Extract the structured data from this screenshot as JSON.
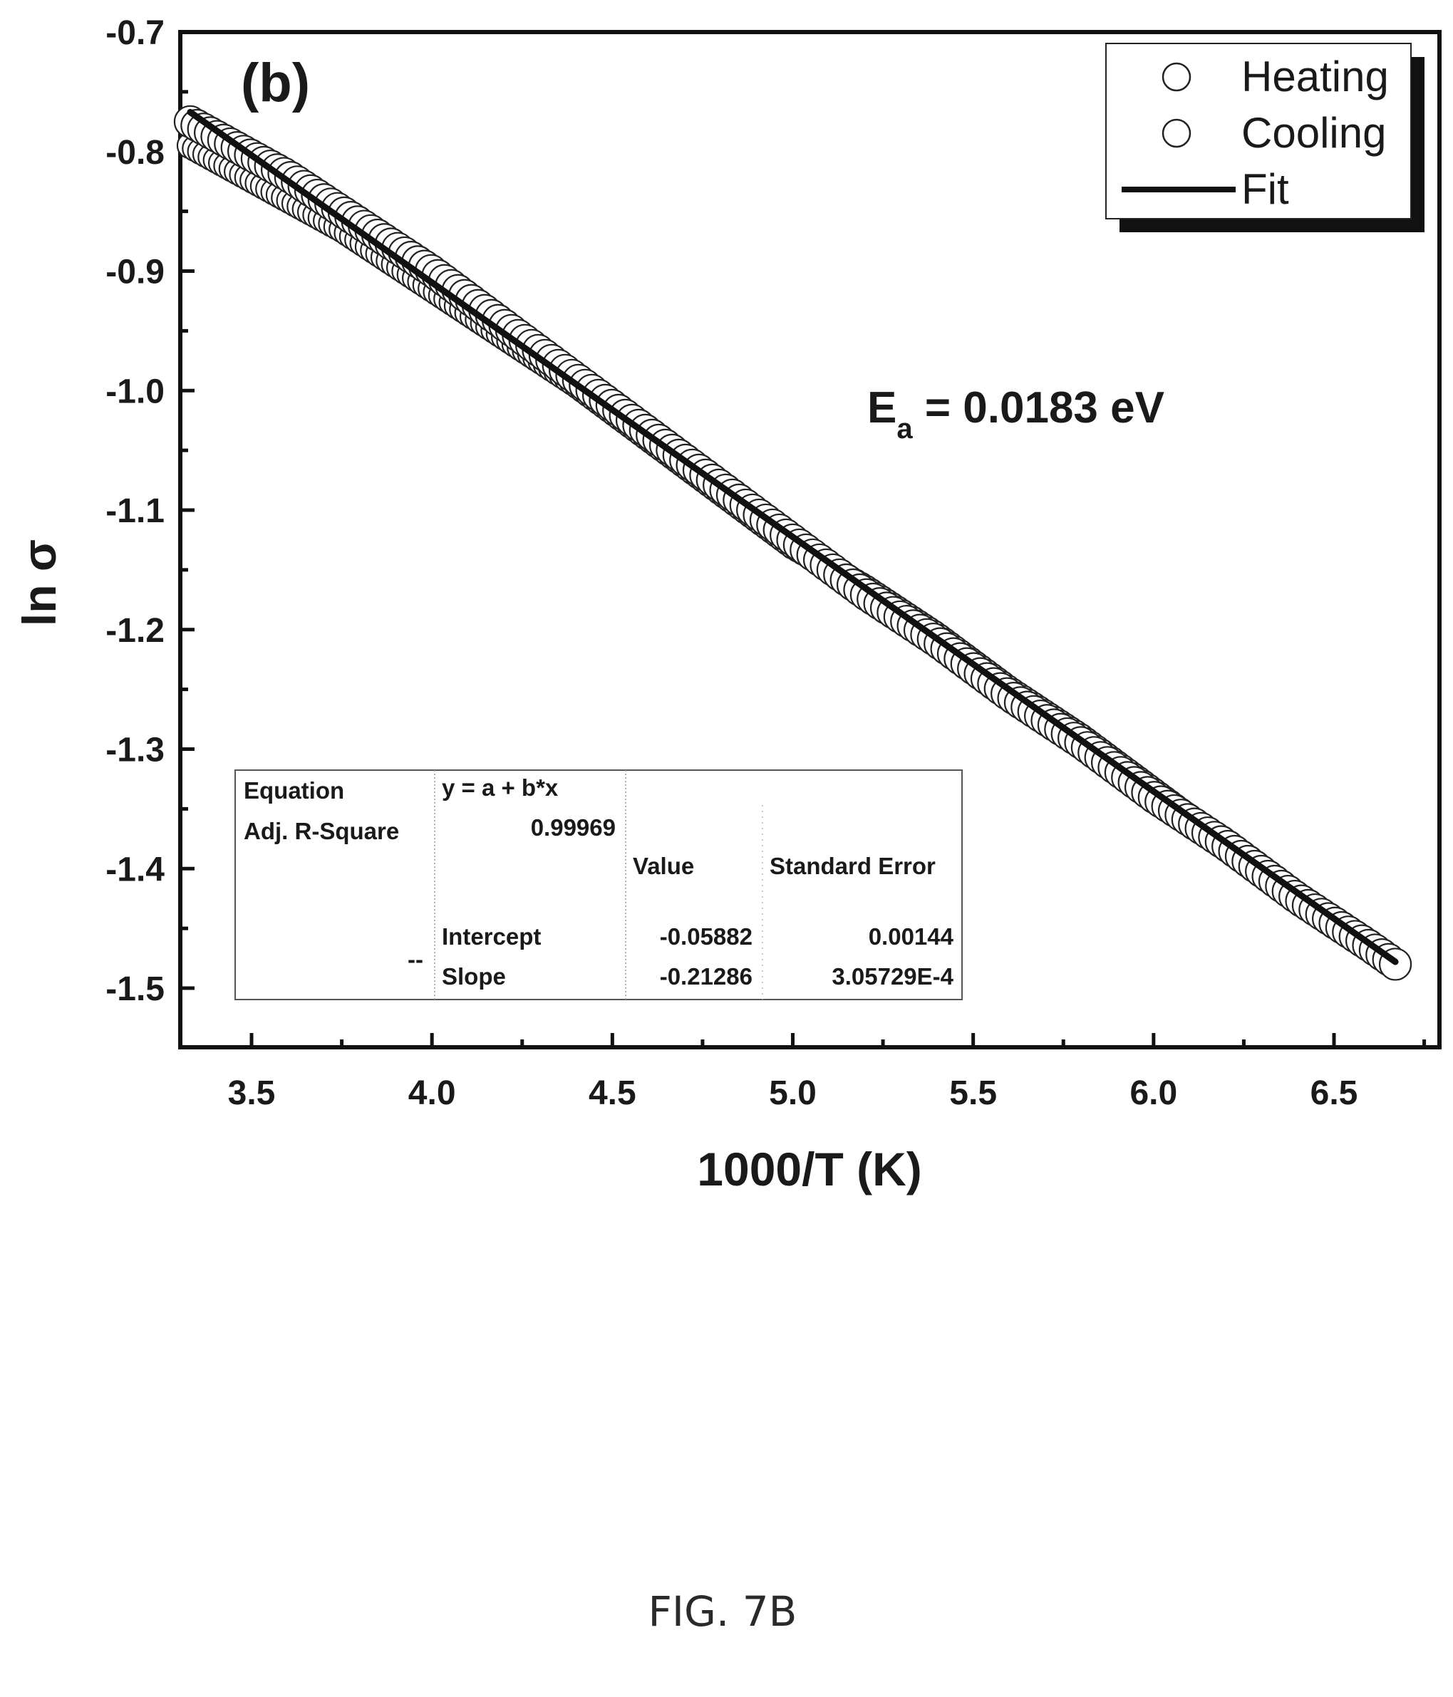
{
  "chart_data": {
    "type": "scatter",
    "panel_label": "(b)",
    "xlabel": "1000/T (K)",
    "ylabel": "ln σ",
    "xlim": [
      3.3,
      6.8
    ],
    "ylim": [
      -1.55,
      -0.7
    ],
    "x_ticks": [
      "3.5",
      "4.0",
      "4.5",
      "5.0",
      "5.5",
      "6.0",
      "6.5"
    ],
    "x_tick_values": [
      3.5,
      4.0,
      4.5,
      5.0,
      5.5,
      6.0,
      6.5
    ],
    "y_ticks": [
      "-0.7",
      "-0.8",
      "-0.9",
      "-1.0",
      "-1.1",
      "-1.2",
      "-1.3",
      "-1.4",
      "-1.5"
    ],
    "y_tick_values": [
      -0.7,
      -0.8,
      -0.9,
      -1.0,
      -1.1,
      -1.2,
      -1.3,
      -1.4,
      -1.5
    ],
    "series": [
      {
        "name": "Heating",
        "marker": "open-circle",
        "x": [
          3.33,
          3.45,
          3.6,
          3.75,
          3.9,
          4.0,
          4.2,
          4.4,
          4.6,
          4.8,
          5.0,
          5.2,
          5.4,
          5.6,
          5.8,
          6.0,
          6.2,
          6.4,
          6.6,
          6.67
        ],
        "y": [
          -0.795,
          -0.815,
          -0.84,
          -0.865,
          -0.895,
          -0.915,
          -0.955,
          -0.995,
          -1.04,
          -1.085,
          -1.13,
          -1.165,
          -1.205,
          -1.25,
          -1.29,
          -1.335,
          -1.38,
          -1.425,
          -1.465,
          -1.48
        ]
      },
      {
        "name": "Cooling",
        "marker": "open-circle",
        "x": [
          3.33,
          3.45,
          3.6,
          3.75,
          3.9,
          4.0,
          4.2,
          4.4,
          4.6,
          4.8,
          5.0,
          5.2,
          5.4,
          5.6,
          5.8,
          6.0,
          6.2,
          6.4,
          6.6,
          6.67
        ],
        "y": [
          -0.775,
          -0.795,
          -0.82,
          -0.85,
          -0.88,
          -0.9,
          -0.945,
          -0.99,
          -1.035,
          -1.08,
          -1.125,
          -1.17,
          -1.21,
          -1.255,
          -1.295,
          -1.34,
          -1.38,
          -1.425,
          -1.465,
          -1.48
        ]
      },
      {
        "name": "Fit",
        "type": "line",
        "x": [
          3.33,
          6.67
        ],
        "y": [
          -0.767,
          -1.478
        ]
      }
    ],
    "legend": {
      "position": "top-right",
      "entries": [
        "Heating",
        "Cooling",
        "Fit"
      ]
    },
    "annotation": {
      "main": "E",
      "sub": "a",
      "rest": " = 0.0183 eV"
    },
    "fit_table": {
      "equation_label": "Equation",
      "equation": "y = a + b*x",
      "adj_r_square_label": "Adj. R-Square",
      "adj_r_square": "0.99969",
      "value_header": "Value",
      "std_error_header": "Standard Error",
      "row_prefix": "--",
      "rows": [
        {
          "name": "Intercept",
          "value": "-0.05882",
          "std_error": "0.00144"
        },
        {
          "name": "Slope",
          "value": "-0.21286",
          "std_error": "3.05729E-4"
        }
      ]
    },
    "grid": false
  },
  "caption": "FIG. 7B"
}
